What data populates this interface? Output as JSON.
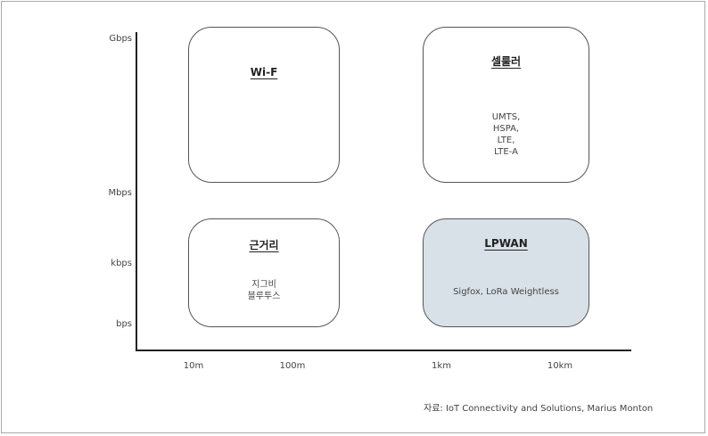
{
  "axes": {
    "y_ticks": [
      "Gbps",
      "Mbps",
      "kbps",
      "bps"
    ],
    "x_ticks": [
      "10m",
      "100m",
      "1km",
      "10km"
    ]
  },
  "boxes": [
    {
      "title": "Wi-F",
      "items": []
    },
    {
      "title": "셀룰러",
      "items": [
        "UMTS,",
        "HSPA,",
        "LTE,",
        "LTE-A"
      ]
    },
    {
      "title": "근거리",
      "items": [
        "지그비",
        "블루투스"
      ]
    },
    {
      "title": "LPWAN",
      "items": [
        "Sigfox, LoRa Weightless"
      ]
    }
  ],
  "source": "자료: IoT Connectivity and Solutions, Marius Monton",
  "colors": {
    "lpwan_fill": "#d9e1e8",
    "axis": "#222222",
    "box_border": "#555555"
  }
}
